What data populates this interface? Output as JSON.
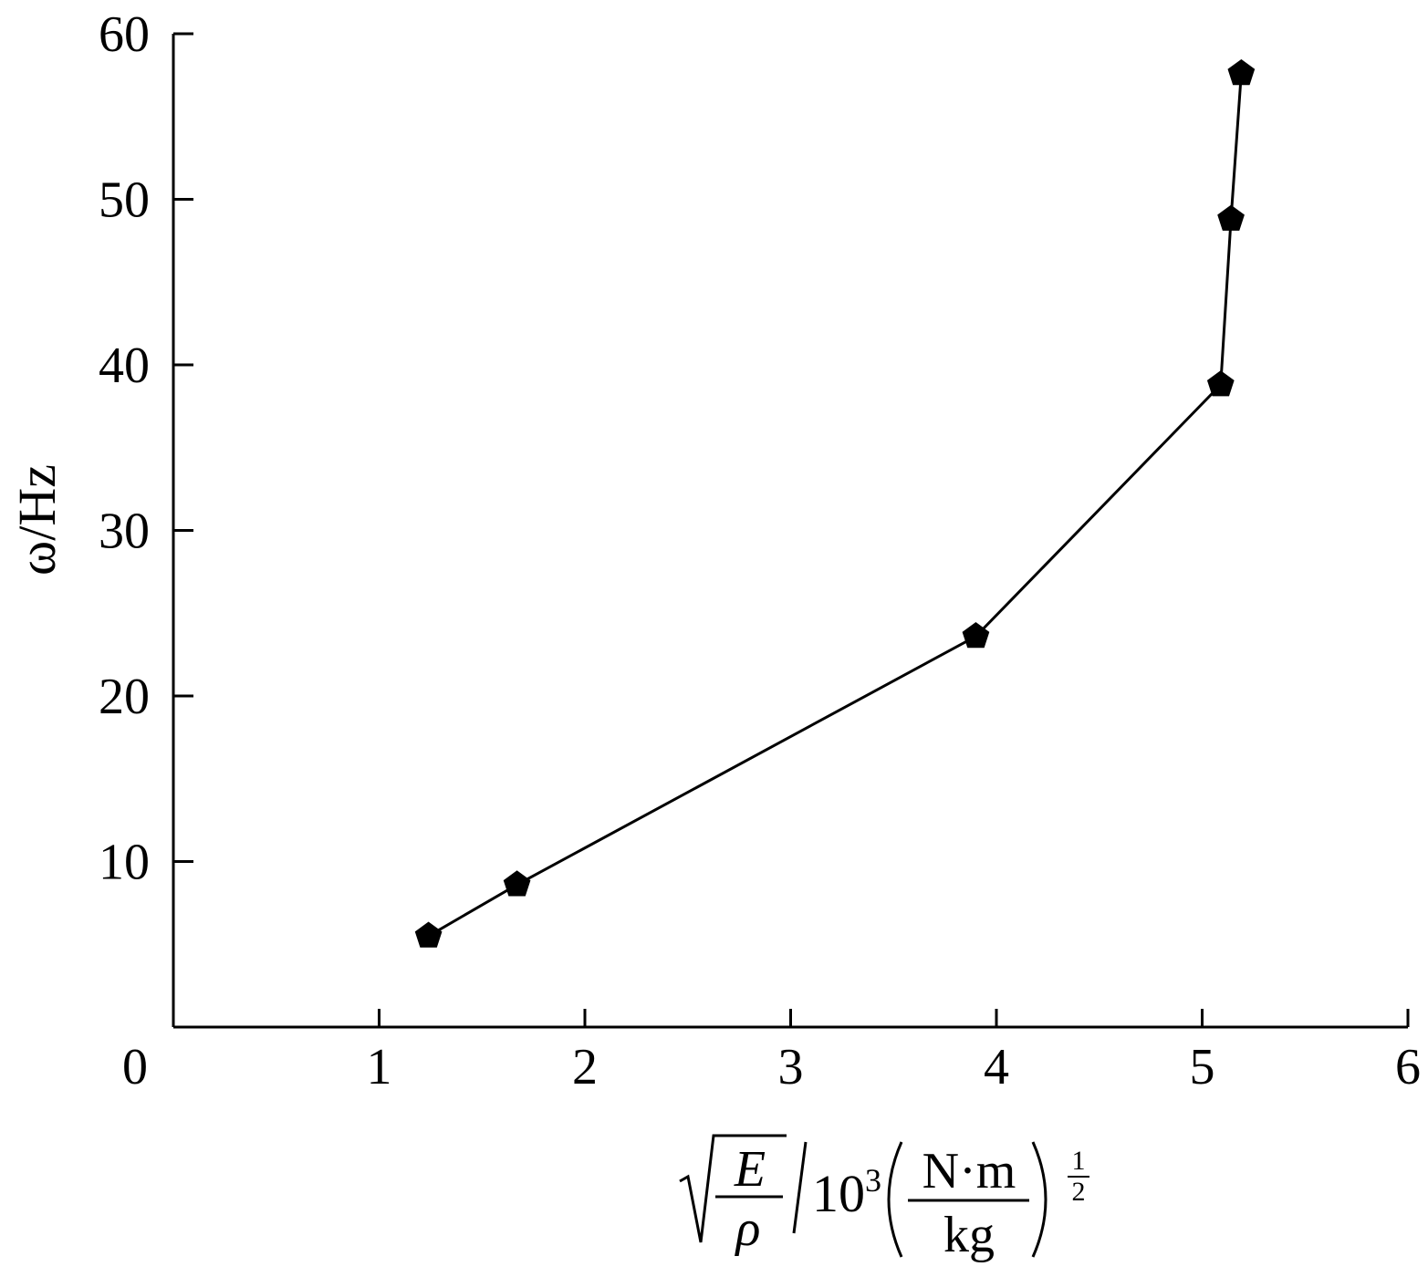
{
  "chart_data": {
    "type": "line",
    "xlabel": {
      "numerator": "E",
      "denominator": "ρ",
      "unit_prefix": "10",
      "unit_exponent": "3",
      "unit_numerator": "N·m",
      "unit_denominator": "kg",
      "outer_exp_numerator": "1",
      "outer_exp_denominator": "2"
    },
    "ylabel": "ω/Hz",
    "xlim": [
      0,
      6
    ],
    "ylim": [
      0,
      60
    ],
    "x_ticks": [
      0,
      1,
      2,
      3,
      4,
      5,
      6
    ],
    "y_ticks": [
      10,
      20,
      30,
      40,
      50,
      60
    ],
    "grid": false,
    "marker": "filled-pentagon",
    "color": "#000000",
    "series": [
      {
        "x": [
          1.24,
          1.67,
          3.9,
          5.09,
          5.14,
          5.19
        ],
        "y": [
          5.5,
          8.6,
          23.6,
          38.8,
          48.8,
          57.6
        ]
      }
    ]
  }
}
